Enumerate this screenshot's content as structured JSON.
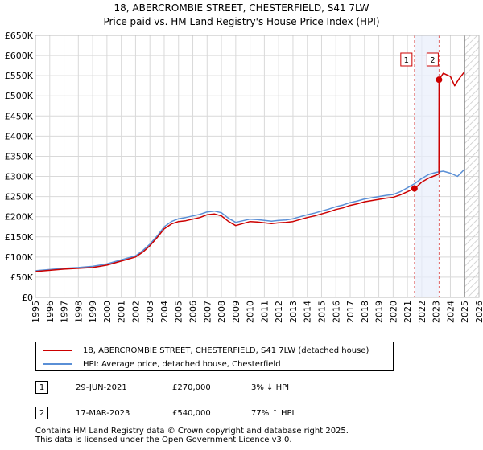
{
  "chart_data": {
    "type": "line",
    "title": "18, ABERCROMBIE STREET, CHESTERFIELD, S41 7LW",
    "subtitle": "Price paid vs. HM Land Registry's House Price Index (HPI)",
    "xlabel": "",
    "ylabel": "",
    "xlim": [
      1995,
      2026
    ],
    "ylim": [
      0,
      650000
    ],
    "x_ticks": [
      1995,
      1996,
      1997,
      1998,
      1999,
      2000,
      2001,
      2002,
      2003,
      2004,
      2005,
      2006,
      2007,
      2008,
      2009,
      2010,
      2011,
      2012,
      2013,
      2014,
      2015,
      2016,
      2017,
      2018,
      2019,
      2020,
      2021,
      2022,
      2023,
      2024,
      2025,
      2026
    ],
    "y_ticks": [
      0,
      50000,
      100000,
      150000,
      200000,
      250000,
      300000,
      350000,
      400000,
      450000,
      500000,
      550000,
      600000,
      650000
    ],
    "y_tick_labels": [
      "£0",
      "£50K",
      "£100K",
      "£150K",
      "£200K",
      "£250K",
      "£300K",
      "£350K",
      "£400K",
      "£450K",
      "£500K",
      "£550K",
      "£600K",
      "£650K"
    ],
    "grid": true,
    "series": [
      {
        "name": "18, ABERCROMBIE STREET, CHESTERFIELD, S41 7LW (detached house)",
        "color": "#cc0000",
        "x": [
          1995.0,
          1996.0,
          1997.0,
          1998.0,
          1999.0,
          2000.0,
          2001.0,
          2002.0,
          2002.5,
          2003.0,
          2003.5,
          2004.0,
          2004.5,
          2005.0,
          2005.5,
          2006.0,
          2006.5,
          2007.0,
          2007.5,
          2008.0,
          2008.5,
          2009.0,
          2009.5,
          2010.0,
          2010.5,
          2011.0,
          2011.5,
          2012.0,
          2012.5,
          2013.0,
          2013.5,
          2014.0,
          2014.5,
          2015.0,
          2015.5,
          2016.0,
          2016.5,
          2017.0,
          2017.5,
          2018.0,
          2018.5,
          2019.0,
          2019.5,
          2020.0,
          2020.5,
          2021.0,
          2021.49,
          2021.7,
          2022.0,
          2022.5,
          2023.0,
          2023.2,
          2023.21,
          2023.5,
          2024.0,
          2024.3,
          2024.6,
          2025.0
        ],
        "values": [
          64000,
          67000,
          70000,
          72000,
          74000,
          80000,
          90000,
          100000,
          112000,
          128000,
          148000,
          170000,
          182000,
          188000,
          190000,
          194000,
          198000,
          205000,
          207000,
          202000,
          188000,
          178000,
          183000,
          188000,
          187000,
          185000,
          183000,
          185000,
          186000,
          188000,
          193000,
          198000,
          202000,
          207000,
          212000,
          218000,
          222000,
          228000,
          232000,
          237000,
          240000,
          243000,
          246000,
          248000,
          254000,
          262000,
          270000,
          276000,
          286000,
          296000,
          303000,
          306000,
          540000,
          556000,
          548000,
          525000,
          542000,
          560000
        ]
      },
      {
        "name": "HPI: Average price, detached house, Chesterfield",
        "color": "#5a8fd6",
        "x": [
          1995.0,
          1996.0,
          1997.0,
          1998.0,
          1999.0,
          2000.0,
          2001.0,
          2002.0,
          2002.5,
          2003.0,
          2003.5,
          2004.0,
          2004.5,
          2005.0,
          2005.5,
          2006.0,
          2006.5,
          2007.0,
          2007.5,
          2008.0,
          2008.5,
          2009.0,
          2009.5,
          2010.0,
          2010.5,
          2011.0,
          2011.5,
          2012.0,
          2012.5,
          2013.0,
          2013.5,
          2014.0,
          2014.5,
          2015.0,
          2015.5,
          2016.0,
          2016.5,
          2017.0,
          2017.5,
          2018.0,
          2018.5,
          2019.0,
          2019.5,
          2020.0,
          2020.5,
          2021.0,
          2021.5,
          2022.0,
          2022.5,
          2023.0,
          2023.5,
          2024.0,
          2024.5,
          2025.0
        ],
        "values": [
          66000,
          69000,
          72000,
          74000,
          77000,
          83000,
          93000,
          103000,
          116000,
          132000,
          152000,
          175000,
          188000,
          195000,
          198000,
          202000,
          206000,
          212000,
          214000,
          210000,
          196000,
          186000,
          190000,
          194000,
          193000,
          191000,
          189000,
          191000,
          192000,
          195000,
          200000,
          205000,
          209000,
          214000,
          219000,
          225000,
          229000,
          235000,
          239000,
          244000,
          247000,
          250000,
          253000,
          255000,
          262000,
          272000,
          282000,
          295000,
          305000,
          310000,
          313000,
          308000,
          300000,
          318000
        ]
      }
    ],
    "annotations": [
      {
        "label": "1",
        "x": 2021.49,
        "value": 270000
      },
      {
        "label": "2",
        "x": 2023.21,
        "value": 540000
      }
    ],
    "forecast_hatch_start": 2025.0
  },
  "legend": {
    "items": [
      {
        "label": "18, ABERCROMBIE STREET, CHESTERFIELD, S41 7LW (detached house)",
        "color": "#cc0000"
      },
      {
        "label": "HPI: Average price, detached house, Chesterfield",
        "color": "#5a8fd6"
      }
    ]
  },
  "transactions": [
    {
      "num": "1",
      "date": "29-JUN-2021",
      "price": "£270,000",
      "delta": "3% ↓ HPI"
    },
    {
      "num": "2",
      "date": "17-MAR-2023",
      "price": "£540,000",
      "delta": "77% ↑ HPI"
    }
  ],
  "footer": {
    "line1": "Contains HM Land Registry data © Crown copyright and database right 2025.",
    "line2": "This data is licensed under the Open Government Licence v3.0."
  }
}
